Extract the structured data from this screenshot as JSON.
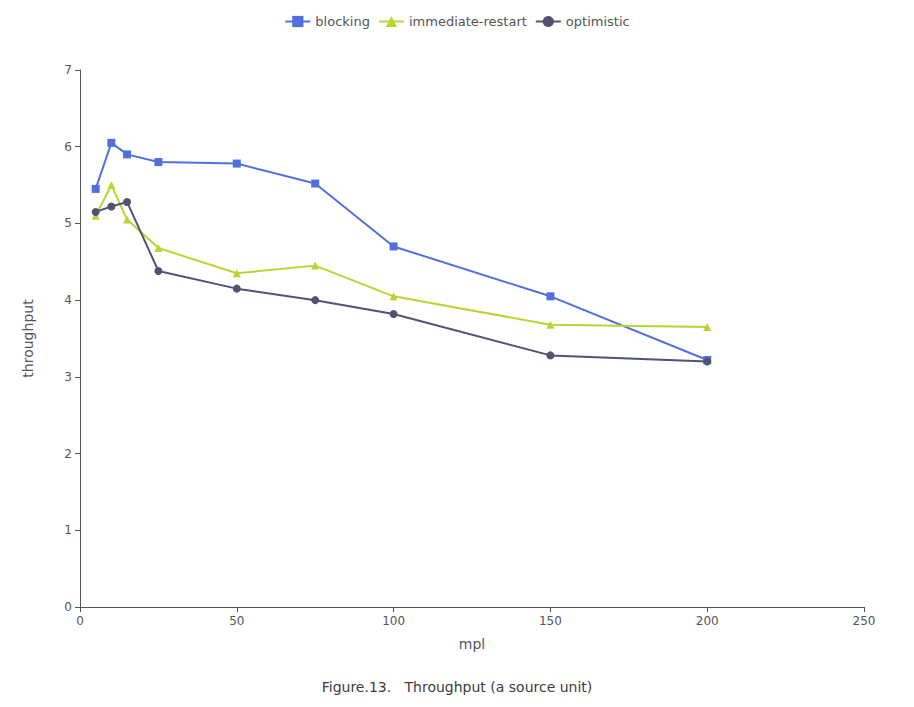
{
  "chart_data": {
    "type": "line",
    "caption": "Figure.13.   Throughput (a source unit)",
    "xlabel": "mpl",
    "ylabel": "throughput",
    "x": [
      5,
      10,
      15,
      25,
      50,
      75,
      100,
      150,
      200
    ],
    "series": [
      {
        "name": "blocking",
        "marker": "square",
        "values": [
          5.45,
          6.05,
          5.9,
          5.8,
          5.78,
          5.52,
          4.7,
          4.05,
          3.22
        ]
      },
      {
        "name": "immediate-restart",
        "marker": "triangle",
        "values": [
          5.1,
          5.5,
          5.05,
          4.68,
          4.35,
          4.45,
          4.05,
          3.68,
          3.65
        ]
      },
      {
        "name": "optimistic",
        "marker": "circle",
        "values": [
          5.15,
          5.22,
          5.28,
          4.38,
          4.15,
          4.0,
          3.82,
          3.28,
          3.2
        ]
      }
    ],
    "xlim": [
      0,
      250
    ],
    "xticks": [
      0,
      50,
      100,
      150,
      200,
      250
    ],
    "ylim": [
      0,
      7
    ],
    "yticks": [
      0,
      1,
      2,
      3,
      4,
      5,
      6,
      7
    ],
    "grid": false,
    "legend": "top"
  }
}
